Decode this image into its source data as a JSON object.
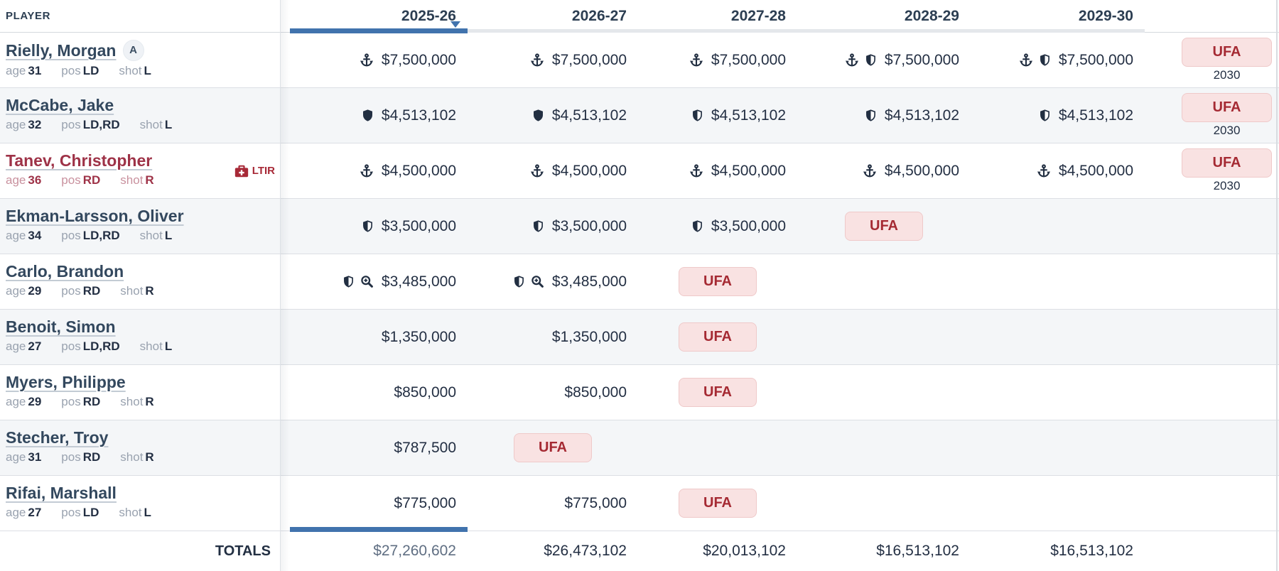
{
  "header": {
    "player_label": "PLAYER",
    "seasons": [
      "2025-26",
      "2026-27",
      "2027-28",
      "2028-29",
      "2029-30"
    ],
    "active_season": "2025-26"
  },
  "meta_labels": {
    "age": "age",
    "pos": "pos",
    "shot": "shot"
  },
  "badges": {
    "alternate_captain": "A",
    "ltir": "LTIR",
    "ufa": "UFA"
  },
  "colors": {
    "accent_blue": "#4173ad",
    "ufa_red": "#a52a33",
    "ufa_bg": "#f9e2e2",
    "navy": "#232f43"
  },
  "players": [
    {
      "name": "Rielly, Morgan",
      "captain_badge": "A",
      "age": "31",
      "pos": "LD",
      "shot": "L",
      "red": false,
      "ltir": false,
      "cells": [
        {
          "type": "money",
          "icons": [
            "anchor"
          ],
          "value": "$7,500,000"
        },
        {
          "type": "money",
          "icons": [
            "anchor"
          ],
          "value": "$7,500,000"
        },
        {
          "type": "money",
          "icons": [
            "anchor"
          ],
          "value": "$7,500,000"
        },
        {
          "type": "money",
          "icons": [
            "anchor",
            "shield-half"
          ],
          "value": "$7,500,000"
        },
        {
          "type": "money",
          "icons": [
            "anchor",
            "shield-half"
          ],
          "value": "$7,500,000"
        }
      ],
      "expiry": {
        "status": "UFA",
        "year": "2030"
      }
    },
    {
      "name": "McCabe, Jake",
      "captain_badge": null,
      "age": "32",
      "pos": "LD,RD",
      "shot": "L",
      "red": false,
      "ltir": false,
      "cells": [
        {
          "type": "money",
          "icons": [
            "shield"
          ],
          "value": "$4,513,102"
        },
        {
          "type": "money",
          "icons": [
            "shield"
          ],
          "value": "$4,513,102"
        },
        {
          "type": "money",
          "icons": [
            "shield-half"
          ],
          "value": "$4,513,102"
        },
        {
          "type": "money",
          "icons": [
            "shield-half"
          ],
          "value": "$4,513,102"
        },
        {
          "type": "money",
          "icons": [
            "shield-half"
          ],
          "value": "$4,513,102"
        }
      ],
      "expiry": {
        "status": "UFA",
        "year": "2030"
      }
    },
    {
      "name": "Tanev, Christopher",
      "captain_badge": null,
      "age": "36",
      "pos": "RD",
      "shot": "R",
      "red": true,
      "ltir": true,
      "cells": [
        {
          "type": "money",
          "icons": [
            "anchor"
          ],
          "value": "$4,500,000"
        },
        {
          "type": "money",
          "icons": [
            "anchor"
          ],
          "value": "$4,500,000"
        },
        {
          "type": "money",
          "icons": [
            "anchor"
          ],
          "value": "$4,500,000"
        },
        {
          "type": "money",
          "icons": [
            "anchor"
          ],
          "value": "$4,500,000"
        },
        {
          "type": "money",
          "icons": [
            "anchor"
          ],
          "value": "$4,500,000"
        }
      ],
      "expiry": {
        "status": "UFA",
        "year": "2030"
      }
    },
    {
      "name": "Ekman-Larsson, Oliver",
      "captain_badge": null,
      "age": "34",
      "pos": "LD,RD",
      "shot": "L",
      "red": false,
      "ltir": false,
      "cells": [
        {
          "type": "money",
          "icons": [
            "shield-half"
          ],
          "value": "$3,500,000"
        },
        {
          "type": "money",
          "icons": [
            "shield-half"
          ],
          "value": "$3,500,000"
        },
        {
          "type": "money",
          "icons": [
            "shield-half"
          ],
          "value": "$3,500,000"
        },
        {
          "type": "ufa"
        },
        {
          "type": "empty"
        }
      ],
      "expiry": null
    },
    {
      "name": "Carlo, Brandon",
      "captain_badge": null,
      "age": "29",
      "pos": "RD",
      "shot": "R",
      "red": false,
      "ltir": false,
      "cells": [
        {
          "type": "money",
          "icons": [
            "shield-half",
            "zoom-plus"
          ],
          "value": "$3,485,000"
        },
        {
          "type": "money",
          "icons": [
            "shield-half",
            "zoom-plus"
          ],
          "value": "$3,485,000"
        },
        {
          "type": "ufa"
        },
        {
          "type": "empty"
        },
        {
          "type": "empty"
        }
      ],
      "expiry": null
    },
    {
      "name": "Benoit, Simon",
      "captain_badge": null,
      "age": "27",
      "pos": "LD,RD",
      "shot": "L",
      "red": false,
      "ltir": false,
      "cells": [
        {
          "type": "money",
          "icons": [],
          "value": "$1,350,000"
        },
        {
          "type": "money",
          "icons": [],
          "value": "$1,350,000"
        },
        {
          "type": "ufa"
        },
        {
          "type": "empty"
        },
        {
          "type": "empty"
        }
      ],
      "expiry": null
    },
    {
      "name": "Myers, Philippe",
      "captain_badge": null,
      "age": "29",
      "pos": "RD",
      "shot": "R",
      "red": false,
      "ltir": false,
      "cells": [
        {
          "type": "money",
          "icons": [],
          "value": "$850,000"
        },
        {
          "type": "money",
          "icons": [],
          "value": "$850,000"
        },
        {
          "type": "ufa"
        },
        {
          "type": "empty"
        },
        {
          "type": "empty"
        }
      ],
      "expiry": null
    },
    {
      "name": "Stecher, Troy",
      "captain_badge": null,
      "age": "31",
      "pos": "RD",
      "shot": "R",
      "red": false,
      "ltir": false,
      "cells": [
        {
          "type": "money",
          "icons": [],
          "value": "$787,500"
        },
        {
          "type": "ufa"
        },
        {
          "type": "empty"
        },
        {
          "type": "empty"
        },
        {
          "type": "empty"
        }
      ],
      "expiry": null
    },
    {
      "name": "Rifai, Marshall",
      "captain_badge": null,
      "age": "27",
      "pos": "LD",
      "shot": "L",
      "red": false,
      "ltir": false,
      "cells": [
        {
          "type": "money",
          "icons": [],
          "value": "$775,000"
        },
        {
          "type": "money",
          "icons": [],
          "value": "$775,000"
        },
        {
          "type": "ufa"
        },
        {
          "type": "empty"
        },
        {
          "type": "empty"
        }
      ],
      "expiry": null
    }
  ],
  "totals": {
    "label": "TOTALS",
    "values": [
      "$27,260,602",
      "$26,473,102",
      "$20,013,102",
      "$16,513,102",
      "$16,513,102"
    ]
  }
}
